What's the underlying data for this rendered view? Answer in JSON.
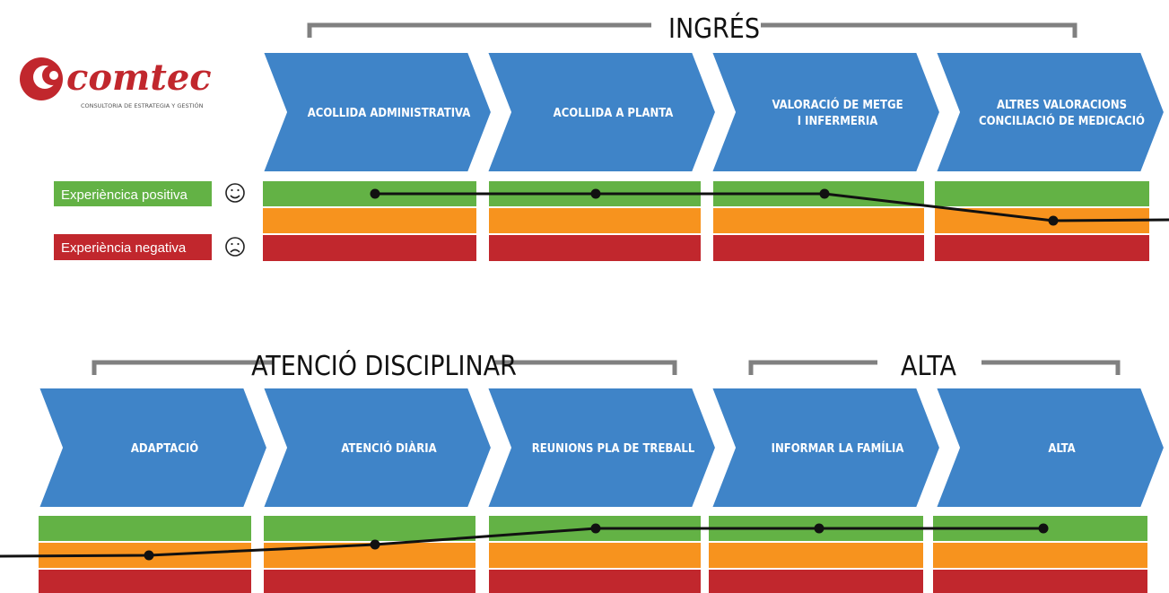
{
  "logo": {
    "brand": "comtec",
    "tagline": "CONSULTORIA DE ESTRATEGIA Y GESTIÓN",
    "color": "#c1272d"
  },
  "legend": {
    "positive_label": "Experièncica positiva",
    "negative_label": "Experiència negativa",
    "positive_icon": "smiley-face-icon",
    "negative_icon": "sad-face-icon"
  },
  "colors": {
    "arrow": "#3f84c8",
    "positive": "#63b245",
    "neutral": "#f7931e",
    "negative": "#c1272d",
    "bracket": "#808080",
    "line": "#111111"
  },
  "rows": [
    {
      "phases": [
        {
          "label": "INGRÉS"
        }
      ],
      "steps": [
        {
          "lines": [
            "ACOLLIDA ADMINISTRATIVA"
          ],
          "level": 2
        },
        {
          "lines": [
            "ACOLLIDA A PLANTA"
          ],
          "level": 2
        },
        {
          "lines": [
            "VALORACIÓ DE METGE",
            "I INFERMERIA"
          ],
          "level": 2
        },
        {
          "lines": [
            "ALTRES VALORACIONS",
            "CONCILIACIÓ DE MEDICACIÓ"
          ],
          "level": 1
        }
      ]
    },
    {
      "phases": [
        {
          "label": "ATENCIÓ DISCIPLINAR"
        },
        {
          "label": "ALTA"
        }
      ],
      "steps": [
        {
          "lines": [
            "ADAPTACIÓ"
          ],
          "level": 1
        },
        {
          "lines": [
            "ATENCIÓ DIÀRIA"
          ],
          "level": 1.4
        },
        {
          "lines": [
            "REUNIONS PLA DE TREBALL"
          ],
          "level": 2
        },
        {
          "lines": [
            "INFORMAR LA FAMÍLIA"
          ],
          "level": 2
        },
        {
          "lines": [
            "ALTA"
          ],
          "level": 2
        }
      ]
    }
  ]
}
